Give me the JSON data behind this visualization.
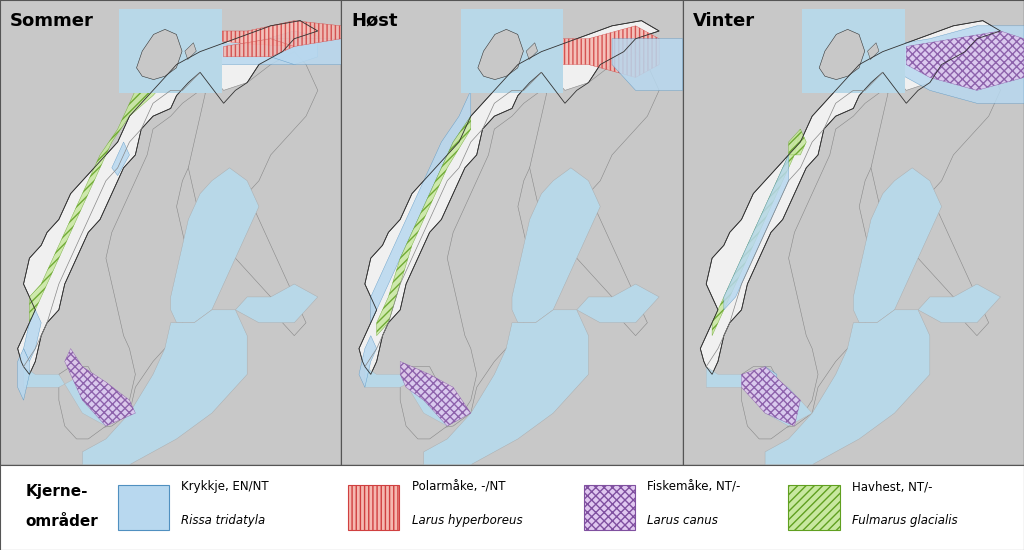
{
  "title_left": "Sommer",
  "title_mid": "Høst",
  "title_right": "Vinter",
  "legend_title_line1": "Kjerne-",
  "legend_title_line2": "områder",
  "legend_items": [
    {
      "label_line1": "Krykkje, EN/NT",
      "label_line2": "Rissa tridatyla",
      "hatch": "====",
      "facecolor": "#b8d8ef",
      "edgecolor": "#5090c0",
      "hatch_color": "#5090c0"
    },
    {
      "label_line1": "Polarmåke, -/NT",
      "label_line2": "Larus hyperboreus",
      "hatch": "||||",
      "facecolor": "#f5b8b0",
      "edgecolor": "#d04040",
      "hatch_color": "#d04040"
    },
    {
      "label_line1": "Fiskemåke, NT/-",
      "label_line2": "Larus canus",
      "hatch": "xxxx",
      "facecolor": "#e0c8f0",
      "edgecolor": "#8050a0",
      "hatch_color": "#8050a0"
    },
    {
      "label_line1": "Havhest, NT/-",
      "label_line2": "Fulmarus glacialis",
      "hatch": "////",
      "facecolor": "#c8e8a0",
      "edgecolor": "#60a020",
      "hatch_color": "#60a020"
    }
  ],
  "ocean_color": "#b8d8e8",
  "land_gray_color": "#c8c8c8",
  "norway_white_color": "#f0f0f0",
  "coast_color": "#333333",
  "border_color": "#888888",
  "figure_bg": "#ffffff",
  "legend_bg": "#ffffff",
  "map_extent": [
    3,
    32,
    54,
    72
  ],
  "svalbard_extent": [
    10,
    30,
    74,
    81
  ]
}
